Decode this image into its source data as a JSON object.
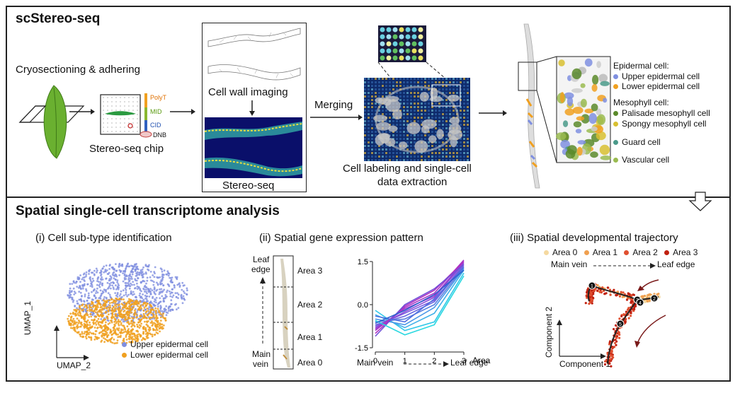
{
  "top": {
    "title": "scStereo-seq",
    "cryosectioning": "Cryosectioning & adhering",
    "chip_label": "Stereo-seq chip",
    "chip_polyT": "PolyT",
    "chip_mid": "MID",
    "chip_cid": "CID",
    "chip_dnb": "DNB",
    "cell_wall": "Cell wall imaging",
    "stereo_seq": "Stereo-seq",
    "merging": "Merging",
    "cell_labeling_1": "Cell labeling and single-cell",
    "cell_labeling_2": "data extraction",
    "legend": {
      "epidermal_header": "Epidermal cell:",
      "upper_epidermal": "Upper epidermal cell",
      "lower_epidermal": "Lower epidermal cell",
      "mesophyll_header": "Mesophyll cell:",
      "palisade": "Palisade mesophyll cell",
      "spongy": "Spongy mesophyll cell",
      "guard": "Guard cell",
      "vascular": "Vascular cell"
    },
    "colors": {
      "upper": "#7f8fe0",
      "lower": "#f0a020",
      "palisade": "#5a8a2a",
      "spongy": "#d8c030",
      "guard": "#4a9a8a",
      "vascular": "#9abb50"
    }
  },
  "bottom": {
    "title": "Spatial single-cell transcriptome analysis",
    "panel1": {
      "title": "(i) Cell sub-type identification",
      "umap1": "UMAP_1",
      "umap2": "UMAP_2",
      "legend_upper": "Upper epidermal cell",
      "legend_lower": "Lower epidermal cell"
    },
    "panel2": {
      "title": "(ii) Spatial gene expression pattern",
      "leaf": "Leaf",
      "edge": "edge",
      "main": "Main",
      "vein": "vein",
      "areas": [
        "Area 3",
        "Area 2",
        "Area 1",
        "Area 0"
      ],
      "x_axis_label": "Area",
      "x_caption_left": "Main vein",
      "x_caption_right": "Leaf edge"
    },
    "panel3": {
      "title": "(iii) Spatial developmental trajectory",
      "areas": [
        "Area 0",
        "Area 1",
        "Area 2",
        "Area 3"
      ],
      "area_colors": [
        "#f5d9a0",
        "#f0a050",
        "#e05030",
        "#c02010"
      ],
      "main_vein": "Main vein",
      "leaf_edge": "Leaf edge",
      "component1": "Component 1",
      "component2": "Component 2",
      "nodes": [
        "1",
        "2",
        "3",
        "4",
        "5"
      ]
    }
  },
  "chart_data": {
    "type": "line",
    "x": [
      0,
      1,
      2,
      3
    ],
    "xlabel": "Area",
    "ylabel": "",
    "ylim": [
      -1.5,
      1.5
    ],
    "yticks": [
      -1.5,
      0.0,
      1.5
    ],
    "xticks": [
      0,
      1,
      2,
      3
    ],
    "series": [
      {
        "values": [
          -0.2,
          -0.9,
          -0.6,
          1.1
        ],
        "color": "#30c8e8"
      },
      {
        "values": [
          -0.35,
          -0.8,
          -0.3,
          1.2
        ],
        "color": "#40b0e8"
      },
      {
        "values": [
          -0.5,
          -0.7,
          -0.1,
          1.25
        ],
        "color": "#4a98e8"
      },
      {
        "values": [
          -0.6,
          -0.5,
          0.0,
          1.3
        ],
        "color": "#5a80e0"
      },
      {
        "values": [
          -0.7,
          -0.4,
          0.1,
          1.35
        ],
        "color": "#6a6ae0"
      },
      {
        "values": [
          -0.75,
          -0.3,
          0.15,
          1.4
        ],
        "color": "#7a5ae0"
      },
      {
        "values": [
          -0.8,
          -0.25,
          0.25,
          1.45
        ],
        "color": "#8a4ad8"
      },
      {
        "values": [
          -0.85,
          -0.15,
          0.3,
          1.5
        ],
        "color": "#9a40d0"
      },
      {
        "values": [
          -0.9,
          -0.1,
          0.4,
          1.55
        ],
        "color": "#a838c8"
      },
      {
        "values": [
          -1.0,
          -0.05,
          0.5,
          1.5
        ],
        "color": "#b030c0"
      },
      {
        "values": [
          -1.1,
          0.0,
          0.55,
          1.4
        ],
        "color": "#7050d8"
      },
      {
        "values": [
          -0.55,
          -1.05,
          -0.7,
          1.0
        ],
        "color": "#2ad8e0"
      },
      {
        "values": [
          -0.4,
          -0.6,
          0.2,
          1.3
        ],
        "color": "#5070e0"
      },
      {
        "values": [
          -0.65,
          -0.2,
          0.35,
          1.2
        ],
        "color": "#3060d0"
      }
    ]
  }
}
